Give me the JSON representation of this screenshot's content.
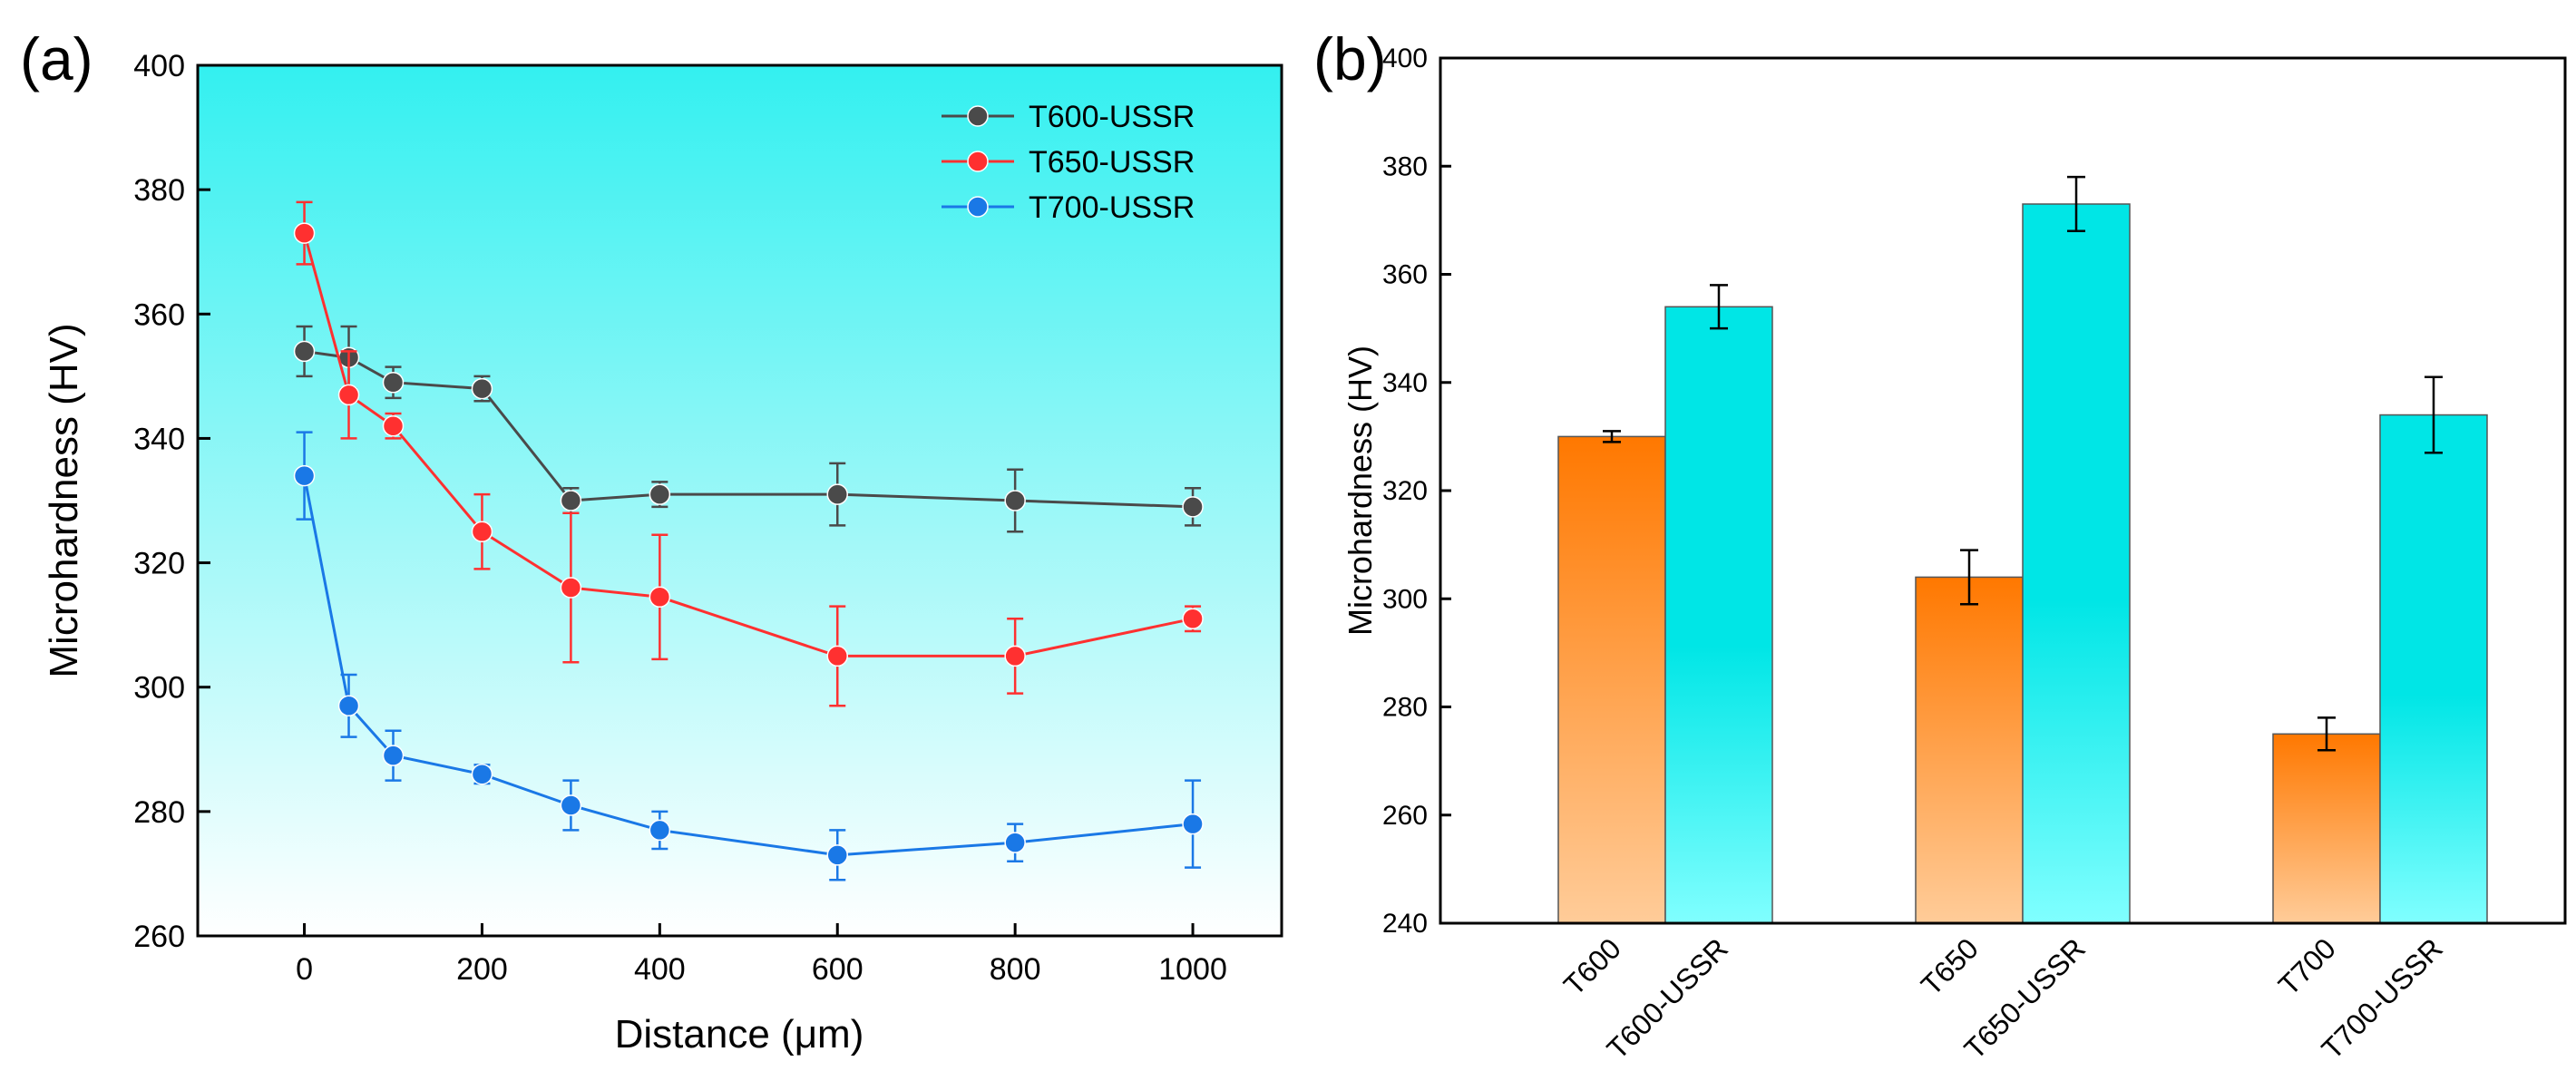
{
  "colors": {
    "series_T600": "#4a4a4a",
    "series_T650": "#ff3030",
    "series_T700": "#1a78e6",
    "panel_a_bg_top": "#33f0f0",
    "panel_a_bg_bottom": "#ffffff",
    "bar_base_top": "#ff7800",
    "bar_base_bottom": "#ffcc99",
    "bar_ussr_top": "#00e6e6",
    "bar_ussr_bottom": "#80ffff"
  },
  "chart_data": [
    {
      "panel_label": "(a)",
      "type": "line",
      "title": "",
      "xlabel": "Distance (μm)",
      "ylabel": "Microhardness (HV)",
      "xlim": [
        -120,
        1100
      ],
      "ylim": [
        260,
        400
      ],
      "xticks": [
        0,
        200,
        400,
        600,
        800,
        1000
      ],
      "yticks": [
        260,
        280,
        300,
        320,
        340,
        360,
        380,
        400
      ],
      "legend_position": "top-right",
      "grid": false,
      "series": [
        {
          "name": "T600-USSR",
          "color": "#4a4a4a",
          "x": [
            0,
            50,
            100,
            200,
            300,
            400,
            600,
            800,
            1000
          ],
          "y": [
            354,
            353,
            349,
            348,
            330,
            331,
            331,
            330,
            329
          ],
          "err": [
            4,
            5,
            2.5,
            2,
            2,
            2,
            5,
            5,
            3
          ]
        },
        {
          "name": "T650-USSR",
          "color": "#ff3030",
          "x": [
            0,
            50,
            100,
            200,
            300,
            400,
            600,
            800,
            1000
          ],
          "y": [
            373,
            347,
            342,
            325,
            316,
            314.5,
            305,
            305,
            311
          ],
          "err": [
            5,
            7,
            2,
            6,
            12,
            10,
            8,
            6,
            2
          ]
        },
        {
          "name": "T700-USSR",
          "color": "#1a78e6",
          "x": [
            0,
            50,
            100,
            200,
            300,
            400,
            600,
            800,
            1000
          ],
          "y": [
            334,
            297,
            289,
            286,
            281,
            277,
            273,
            275,
            278
          ],
          "err": [
            7,
            5,
            4,
            1.5,
            4,
            3,
            4,
            3,
            7
          ]
        }
      ]
    },
    {
      "panel_label": "(b)",
      "type": "bar",
      "title": "",
      "xlabel": "",
      "ylabel": "Microhardness (HV)",
      "ylim": [
        240,
        400
      ],
      "yticks": [
        240,
        260,
        280,
        300,
        320,
        340,
        360,
        380,
        400
      ],
      "grid": false,
      "categories": [
        "T600",
        "T600-USSR",
        "T650",
        "T650-USSR",
        "T700",
        "T700-USSR"
      ],
      "groups": [
        {
          "bars": [
            {
              "label": "T600",
              "value": 330,
              "err": 1,
              "kind": "base"
            },
            {
              "label": "T600-USSR",
              "value": 354,
              "err": 4,
              "kind": "ussr"
            }
          ]
        },
        {
          "bars": [
            {
              "label": "T650",
              "value": 304,
              "err": 5,
              "kind": "base"
            },
            {
              "label": "T650-USSR",
              "value": 373,
              "err": 5,
              "kind": "ussr"
            }
          ]
        },
        {
          "bars": [
            {
              "label": "T700",
              "value": 275,
              "err": 3,
              "kind": "base"
            },
            {
              "label": "T700-USSR",
              "value": 334,
              "err": 7,
              "kind": "ussr"
            }
          ]
        }
      ]
    }
  ]
}
